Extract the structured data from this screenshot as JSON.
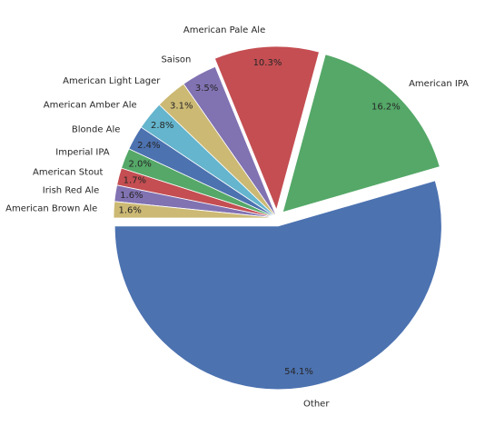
{
  "chart_data": {
    "type": "pie",
    "title": "",
    "start_angle_deg": 180,
    "direction": "counterclockwise",
    "slices": [
      {
        "label": "Other",
        "value": 54.1,
        "pct_label": "54.1%",
        "color": "#4c72b0",
        "exploded": true
      },
      {
        "label": "American IPA",
        "value": 16.2,
        "pct_label": "16.2%",
        "color": "#55a868",
        "exploded": true
      },
      {
        "label": "American Pale Ale",
        "value": 10.3,
        "pct_label": "10.3%",
        "color": "#c44e52",
        "exploded": true
      },
      {
        "label": "Saison",
        "value": 3.5,
        "pct_label": "3.5%",
        "color": "#8172b2",
        "exploded": false
      },
      {
        "label": "American Light Lager",
        "value": 3.1,
        "pct_label": "3.1%",
        "color": "#ccb974",
        "exploded": false
      },
      {
        "label": "American Amber Ale",
        "value": 2.8,
        "pct_label": "2.8%",
        "color": "#64b5cd",
        "exploded": false
      },
      {
        "label": "Blonde Ale",
        "value": 2.4,
        "pct_label": "2.4%",
        "color": "#4c72b0",
        "exploded": false
      },
      {
        "label": "Imperial IPA",
        "value": 2.0,
        "pct_label": "2.0%",
        "color": "#55a868",
        "exploded": false
      },
      {
        "label": "American Stout",
        "value": 1.7,
        "pct_label": "1.7%",
        "color": "#c44e52",
        "exploded": false
      },
      {
        "label": "Irish Red Ale",
        "value": 1.6,
        "pct_label": "1.6%",
        "color": "#8172b2",
        "exploded": false
      },
      {
        "label": "American Brown Ale",
        "value": 1.6,
        "pct_label": "1.6%",
        "color": "#ccb974",
        "exploded": false
      }
    ]
  }
}
